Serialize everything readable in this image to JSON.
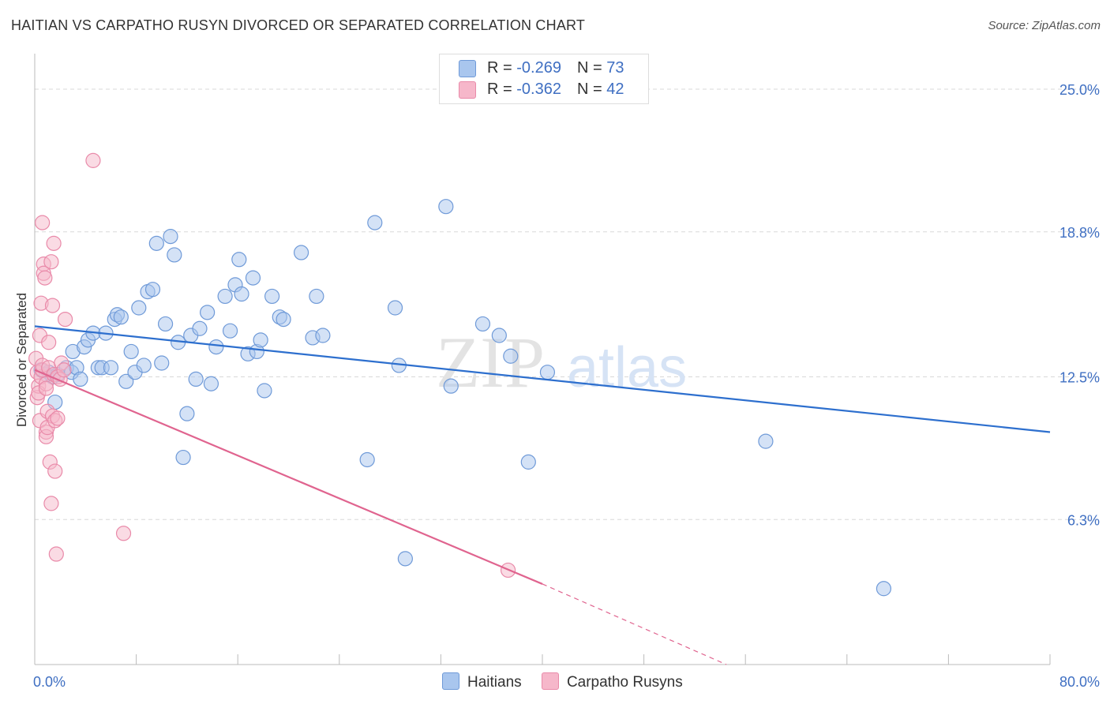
{
  "title": "HAITIAN VS CARPATHO RUSYN DIVORCED OR SEPARATED CORRELATION CHART",
  "source": "Source: ZipAtlas.com",
  "watermark": {
    "zip": "ZIP",
    "atlas": "atlas"
  },
  "legend": {
    "rows": [
      {
        "r_label": "R = ",
        "r_value": "-0.269",
        "n_label": "N = ",
        "n_value": "73"
      },
      {
        "r_label": "R = ",
        "r_value": "-0.362",
        "n_label": "N = ",
        "n_value": "42"
      }
    ]
  },
  "colors": {
    "blue_fill": "#a9c6ee",
    "blue_stroke": "#6f9ad8",
    "blue_line": "#2d6fce",
    "pink_fill": "#f6b7ca",
    "pink_stroke": "#e98aa9",
    "pink_line": "#e0648f",
    "grid": "#d8d8d8",
    "axis_text": "#3f6fc2"
  },
  "chart_data": {
    "type": "scatter",
    "title": "HAITIAN VS CARPATHO RUSYN DIVORCED OR SEPARATED CORRELATION CHART",
    "xlabel": "",
    "ylabel": "Divorced or Separated",
    "xlim": [
      0,
      80
    ],
    "ylim": [
      0,
      26.2
    ],
    "x_tick_labels": [
      "0.0%",
      "80.0%"
    ],
    "y_ticks": [
      6.3,
      12.5,
      18.8,
      25.0
    ],
    "y_tick_labels": [
      "6.3%",
      "12.5%",
      "18.8%",
      "25.0%"
    ],
    "grid": true,
    "series": [
      {
        "name": "Haitians",
        "n": 73,
        "r": -0.269,
        "trend": {
          "x": [
            0,
            80
          ],
          "y": [
            14.7,
            10.1
          ],
          "dashed_from": null
        },
        "points": [
          [
            0.5,
            12.8
          ],
          [
            0.9,
            12.6
          ],
          [
            1.1,
            12.7
          ],
          [
            1.4,
            12.5
          ],
          [
            1.6,
            11.4
          ],
          [
            1.8,
            12.6
          ],
          [
            2.5,
            12.9
          ],
          [
            2.9,
            12.7
          ],
          [
            3.0,
            13.6
          ],
          [
            3.3,
            12.9
          ],
          [
            3.6,
            12.4
          ],
          [
            3.9,
            13.8
          ],
          [
            4.2,
            14.1
          ],
          [
            4.6,
            14.4
          ],
          [
            5.0,
            12.9
          ],
          [
            5.3,
            12.9
          ],
          [
            5.6,
            14.4
          ],
          [
            6.0,
            12.9
          ],
          [
            6.3,
            15.0
          ],
          [
            6.5,
            15.2
          ],
          [
            6.8,
            15.1
          ],
          [
            7.2,
            12.3
          ],
          [
            7.6,
            13.6
          ],
          [
            7.9,
            12.7
          ],
          [
            8.2,
            15.5
          ],
          [
            8.6,
            13.0
          ],
          [
            8.9,
            16.2
          ],
          [
            9.3,
            16.3
          ],
          [
            9.6,
            18.3
          ],
          [
            10.0,
            13.1
          ],
          [
            10.3,
            14.8
          ],
          [
            10.7,
            18.6
          ],
          [
            11.0,
            17.8
          ],
          [
            11.3,
            14.0
          ],
          [
            11.7,
            9.0
          ],
          [
            12.0,
            10.9
          ],
          [
            12.3,
            14.3
          ],
          [
            12.7,
            12.4
          ],
          [
            13.0,
            14.6
          ],
          [
            13.6,
            15.3
          ],
          [
            13.9,
            12.2
          ],
          [
            14.3,
            13.8
          ],
          [
            15.0,
            16.0
          ],
          [
            15.4,
            14.5
          ],
          [
            15.8,
            16.5
          ],
          [
            16.1,
            17.6
          ],
          [
            16.3,
            16.1
          ],
          [
            16.8,
            13.5
          ],
          [
            17.5,
            13.6
          ],
          [
            17.2,
            16.8
          ],
          [
            17.8,
            14.1
          ],
          [
            18.1,
            11.9
          ],
          [
            18.7,
            16.0
          ],
          [
            19.3,
            15.1
          ],
          [
            19.6,
            15.0
          ],
          [
            21.0,
            17.9
          ],
          [
            21.9,
            14.2
          ],
          [
            22.2,
            16.0
          ],
          [
            22.7,
            14.3
          ],
          [
            26.2,
            8.9
          ],
          [
            26.8,
            19.2
          ],
          [
            28.4,
            15.5
          ],
          [
            28.7,
            13.0
          ],
          [
            29.2,
            4.6
          ],
          [
            32.4,
            19.9
          ],
          [
            32.8,
            12.1
          ],
          [
            35.3,
            14.8
          ],
          [
            36.6,
            14.3
          ],
          [
            37.5,
            13.4
          ],
          [
            38.9,
            8.8
          ],
          [
            40.4,
            12.7
          ],
          [
            57.6,
            9.7
          ],
          [
            66.9,
            3.3
          ]
        ]
      },
      {
        "name": "Carpatho Rusyns",
        "n": 42,
        "r": -0.362,
        "trend": {
          "x": [
            0,
            40
          ],
          "y": [
            12.8,
            3.5
          ],
          "dashed_from": 40,
          "dashed_to": [
            54.5,
            0
          ]
        },
        "points": [
          [
            0.1,
            13.3
          ],
          [
            0.2,
            12.7
          ],
          [
            0.2,
            11.6
          ],
          [
            0.3,
            12.1
          ],
          [
            0.3,
            11.8
          ],
          [
            0.4,
            10.6
          ],
          [
            0.4,
            14.3
          ],
          [
            0.5,
            12.5
          ],
          [
            0.5,
            15.7
          ],
          [
            0.6,
            12.8
          ],
          [
            0.6,
            13.0
          ],
          [
            0.6,
            19.2
          ],
          [
            0.7,
            17.4
          ],
          [
            0.7,
            17.0
          ],
          [
            0.8,
            16.8
          ],
          [
            0.9,
            10.1
          ],
          [
            0.9,
            9.9
          ],
          [
            0.9,
            12.2
          ],
          [
            1.0,
            10.3
          ],
          [
            1.0,
            11.0
          ],
          [
            1.1,
            12.9
          ],
          [
            1.1,
            14.0
          ],
          [
            1.2,
            8.8
          ],
          [
            1.3,
            17.5
          ],
          [
            1.3,
            7.0
          ],
          [
            1.4,
            15.6
          ],
          [
            1.4,
            10.8
          ],
          [
            1.5,
            18.3
          ],
          [
            1.5,
            12.6
          ],
          [
            1.6,
            10.6
          ],
          [
            1.6,
            8.4
          ],
          [
            1.7,
            4.8
          ],
          [
            1.8,
            10.7
          ],
          [
            1.8,
            12.5
          ],
          [
            2.0,
            12.4
          ],
          [
            2.1,
            13.1
          ],
          [
            2.3,
            12.8
          ],
          [
            2.4,
            15.0
          ],
          [
            4.6,
            21.9
          ],
          [
            7.0,
            5.7
          ],
          [
            37.3,
            4.1
          ],
          [
            0.9,
            12.0
          ]
        ]
      }
    ]
  }
}
